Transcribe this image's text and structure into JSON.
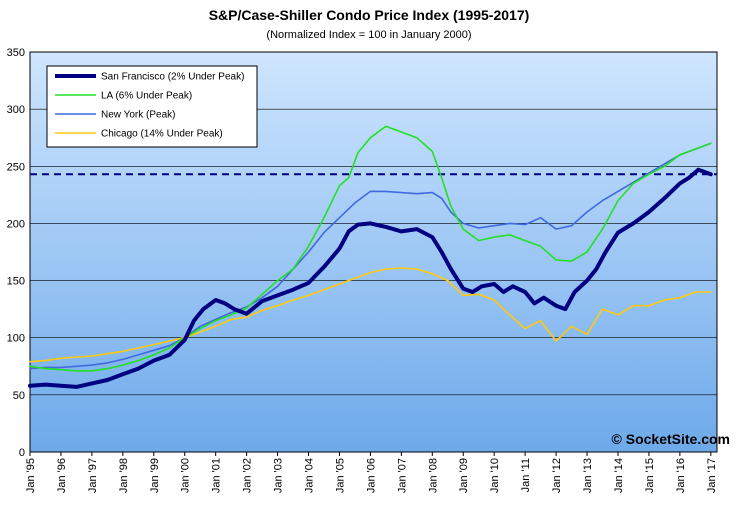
{
  "chart_data": {
    "type": "line",
    "title": "S&P/Case-Shiller Condo Price Index (1995-2017)",
    "subtitle": "(Normalized Index = 100 in January 2000)",
    "watermark": "© SocketSite.com",
    "ylim": [
      0,
      350
    ],
    "yticks": [
      "0",
      "50",
      "100",
      "150",
      "200",
      "250",
      "300",
      "350"
    ],
    "xlim": [
      1995,
      2017.2
    ],
    "xticks": [
      "Jan '95",
      "Jan '96",
      "Jan '97",
      "Jan '98",
      "Jan '99",
      "Jan '00",
      "Jan '01",
      "Jan '02",
      "Jan '03",
      "Jan '04",
      "Jan '05",
      "Jan '06",
      "Jan '07",
      "Jan '08",
      "Jan '09",
      "Jan '10",
      "Jan '11",
      "Jan '12",
      "Jan '13",
      "Jan '14",
      "Jan '15",
      "Jan '16",
      "Jan '17"
    ],
    "grid": true,
    "legend_position": "top-left",
    "reference_line": {
      "y": 243,
      "color": "#000080",
      "style": "dashed"
    },
    "series": [
      {
        "name": "San Francisco (2% Under Peak)",
        "color": "#000080",
        "x": [
          1995,
          1995.5,
          1996,
          1996.5,
          1997,
          1997.5,
          1998,
          1998.5,
          1999,
          1999.5,
          2000,
          2000.3,
          2000.6,
          2001,
          2001.3,
          2001.6,
          2002,
          2002.5,
          2003,
          2003.5,
          2004,
          2004.5,
          2005,
          2005.3,
          2005.6,
          2006,
          2006.5,
          2007,
          2007.5,
          2008,
          2008.3,
          2008.6,
          2009,
          2009.3,
          2009.6,
          2010,
          2010.3,
          2010.6,
          2011,
          2011.3,
          2011.6,
          2012,
          2012.3,
          2012.6,
          2013,
          2013.3,
          2013.6,
          2014,
          2014.5,
          2015,
          2015.5,
          2016,
          2016.3,
          2016.6,
          2017
        ],
        "values": [
          58,
          59,
          58,
          57,
          60,
          63,
          68,
          73,
          80,
          85,
          98,
          115,
          125,
          133,
          130,
          125,
          121,
          132,
          137,
          142,
          148,
          162,
          178,
          193,
          199,
          200,
          197,
          193,
          195,
          188,
          175,
          160,
          143,
          140,
          145,
          147,
          140,
          145,
          140,
          130,
          135,
          128,
          125,
          140,
          150,
          160,
          175,
          192,
          200,
          210,
          222,
          235,
          240,
          247,
          243
        ]
      },
      {
        "name": "LA (6% Under Peak)",
        "color": "#22e022",
        "x": [
          1995,
          1995.5,
          1996,
          1996.5,
          1997,
          1997.5,
          1998,
          1998.5,
          1999,
          1999.5,
          2000,
          2000.5,
          2001,
          2001.5,
          2002,
          2002.5,
          2003,
          2003.5,
          2004,
          2004.5,
          2005,
          2005.3,
          2005.6,
          2006,
          2006.5,
          2007,
          2007.5,
          2008,
          2008.3,
          2008.6,
          2009,
          2009.5,
          2010,
          2010.5,
          2011,
          2011.5,
          2012,
          2012.5,
          2013,
          2013.5,
          2014,
          2014.5,
          2015,
          2015.5,
          2016,
          2016.5,
          2017
        ],
        "values": [
          75,
          73,
          72,
          71,
          71,
          73,
          76,
          80,
          85,
          91,
          100,
          108,
          115,
          120,
          126,
          138,
          150,
          160,
          180,
          205,
          233,
          240,
          262,
          275,
          285,
          280,
          275,
          263,
          240,
          215,
          195,
          185,
          188,
          190,
          185,
          180,
          168,
          167,
          175,
          195,
          220,
          235,
          243,
          250,
          260,
          265,
          270
        ]
      },
      {
        "name": "New York (Peak)",
        "color": "#4169e1",
        "x": [
          1995,
          1995.5,
          1996,
          1996.5,
          1997,
          1997.5,
          1998,
          1998.5,
          1999,
          1999.5,
          2000,
          2000.5,
          2001,
          2001.5,
          2002,
          2002.5,
          2003,
          2003.5,
          2004,
          2004.5,
          2005,
          2005.5,
          2006,
          2006.5,
          2007,
          2007.5,
          2008,
          2008.3,
          2008.6,
          2009,
          2009.5,
          2010,
          2010.5,
          2011,
          2011.5,
          2012,
          2012.5,
          2013,
          2013.5,
          2014,
          2014.5,
          2015,
          2015.5,
          2016,
          2016.5,
          2017
        ],
        "values": [
          73,
          74,
          74,
          75,
          76,
          78,
          81,
          85,
          89,
          93,
          100,
          110,
          116,
          122,
          127,
          135,
          145,
          160,
          175,
          192,
          205,
          218,
          228,
          228,
          227,
          226,
          227,
          222,
          210,
          200,
          196,
          198,
          200,
          199,
          205,
          195,
          198,
          210,
          220,
          228,
          236,
          244,
          252,
          260,
          265,
          270
        ]
      },
      {
        "name": "Chicago (14% Under Peak)",
        "color": "#ffc90e",
        "x": [
          1995,
          1995.5,
          1996,
          1996.5,
          1997,
          1997.5,
          1998,
          1998.5,
          1999,
          1999.5,
          2000,
          2000.5,
          2001,
          2001.5,
          2002,
          2002.5,
          2003,
          2003.5,
          2004,
          2004.5,
          2005,
          2005.5,
          2006,
          2006.5,
          2007,
          2007.5,
          2008,
          2008.5,
          2009,
          2009.5,
          2010,
          2010.5,
          2011,
          2011.5,
          2012,
          2012.5,
          2013,
          2013.5,
          2014,
          2014.5,
          2015,
          2015.5,
          2016,
          2016.5,
          2017
        ],
        "values": [
          79,
          80,
          82,
          83,
          84,
          86,
          88,
          91,
          94,
          97,
          100,
          105,
          110,
          116,
          118,
          124,
          128,
          133,
          137,
          142,
          147,
          152,
          157,
          160,
          161,
          160,
          156,
          150,
          137,
          138,
          133,
          120,
          108,
          115,
          97,
          110,
          103,
          125,
          120,
          128,
          128,
          133,
          135,
          140,
          140
        ]
      }
    ]
  }
}
